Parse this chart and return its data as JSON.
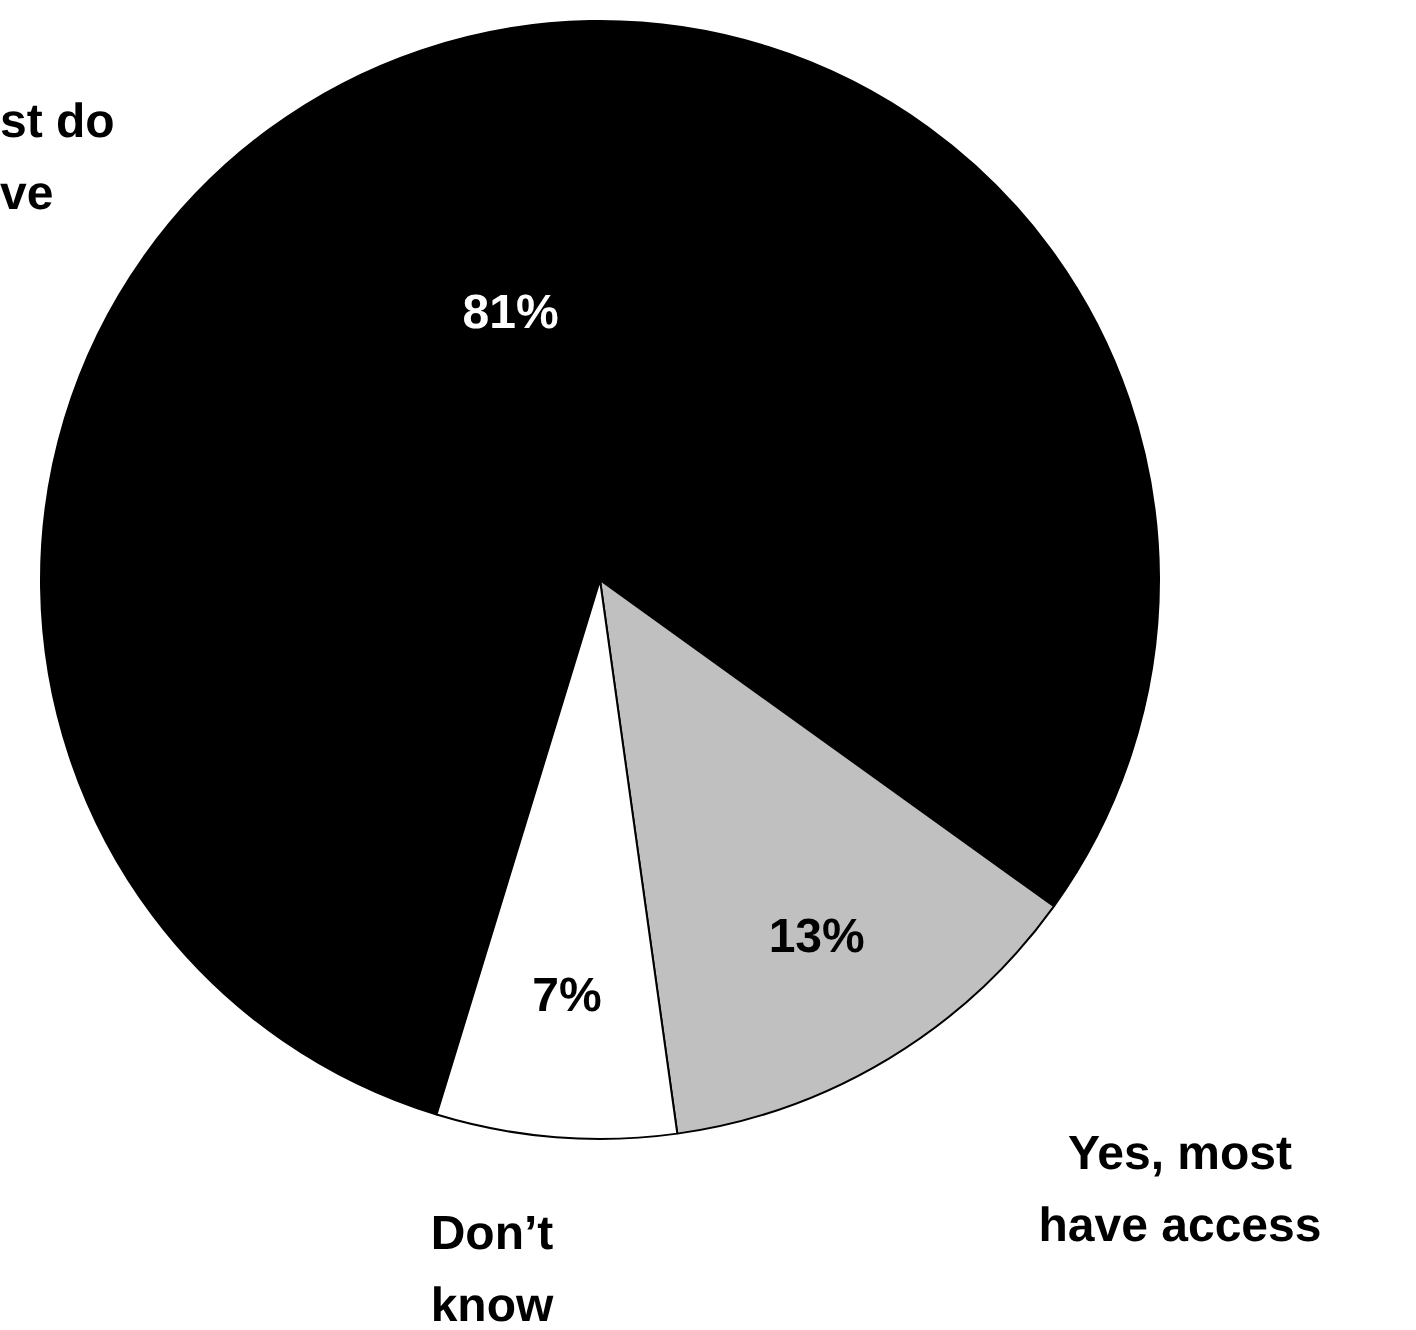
{
  "chart_data": {
    "type": "pie",
    "categories": [
      "st do ve",
      "Yes, most have access",
      "Don’t know"
    ],
    "values": [
      81,
      13,
      7
    ],
    "colors": [
      "#000000",
      "#c0c0c0",
      "#ffffff"
    ],
    "value_labels": [
      "81%",
      "13%",
      "7%"
    ],
    "legend": false
  }
}
